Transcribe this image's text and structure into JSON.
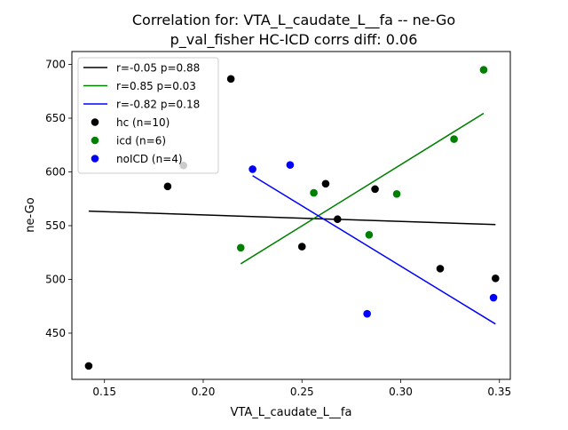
{
  "chart_data": {
    "type": "scatter",
    "title": "Correlation for: VTA_L_caudate_L__fa -- ne-Go",
    "subtitle": "p_val_fisher HC-ICD corrs diff: 0.06",
    "xlabel": "VTA_L_caudate_L__fa",
    "ylabel": "ne-Go",
    "xlim": [
      0.1335,
      0.3555
    ],
    "ylim": [
      407,
      712
    ],
    "xticks": [
      0.15,
      0.2,
      0.25,
      0.3,
      0.35
    ],
    "xtick_labels": [
      "0.15",
      "0.20",
      "0.25",
      "0.30",
      "0.35"
    ],
    "yticks": [
      450,
      500,
      550,
      600,
      650,
      700
    ],
    "ytick_labels": [
      "450",
      "500",
      "550",
      "600",
      "650",
      "700"
    ],
    "grid": false,
    "legend_position": "top-left",
    "lines": [
      {
        "name": "r=-0.05 p=0.88",
        "color": "#000000",
        "x": [
          0.142,
          0.348
        ],
        "y": [
          563.5,
          551.0
        ]
      },
      {
        "name": "r=0.85 p=0.03",
        "color": "#008000",
        "x": [
          0.219,
          0.342
        ],
        "y": [
          514.5,
          654.5
        ]
      },
      {
        "name": "r=-0.82 p=0.18",
        "color": "#0000ff",
        "x": [
          0.225,
          0.348
        ],
        "y": [
          596.5,
          458.5
        ]
      }
    ],
    "series": [
      {
        "name": "hc (n=10)",
        "color": "#000000",
        "x": [
          0.142,
          0.182,
          0.214,
          0.25,
          0.262,
          0.268,
          0.287,
          0.32,
          0.348,
          0.19
        ],
        "y": [
          419.5,
          586.5,
          686.5,
          530.5,
          589.0,
          556.0,
          584.0,
          510.0,
          501.0,
          606.0
        ]
      },
      {
        "name": "icd (n=6)",
        "color": "#008000",
        "x": [
          0.219,
          0.256,
          0.284,
          0.298,
          0.327,
          0.342
        ],
        "y": [
          529.5,
          580.5,
          541.5,
          579.5,
          630.5,
          695.0
        ]
      },
      {
        "name": "noICD (n=4)",
        "color": "#0000ff",
        "x": [
          0.225,
          0.244,
          0.283,
          0.347
        ],
        "y": [
          602.5,
          606.5,
          468.0,
          483.0
        ]
      }
    ]
  }
}
